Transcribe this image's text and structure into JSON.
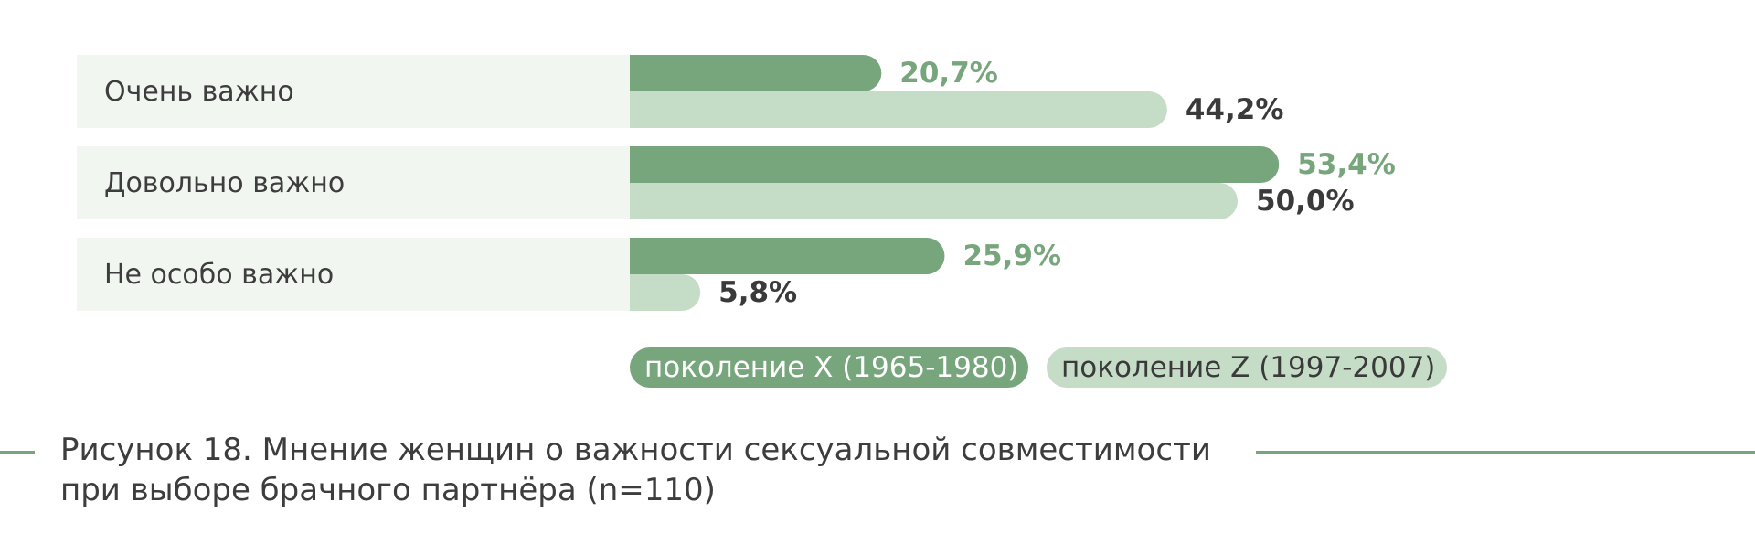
{
  "colors": {
    "series_x": "#78a67c",
    "series_z": "#c5dcc7",
    "row_bg": "#f1f6f1",
    "value_x_text": "#78a67c",
    "value_z_text": "#3a3a3a",
    "label_text": "#3d3d3d",
    "rule": "#78a67c"
  },
  "chart_data": {
    "type": "bar",
    "orientation": "horizontal",
    "categories": [
      "Очень важно",
      "Довольно важно",
      "Не особо важно"
    ],
    "series": [
      {
        "name": "поколение X (1965-1980)",
        "values": [
          20.7,
          53.4,
          25.9
        ],
        "labels": [
          "20,7%",
          "53,4%",
          "25,9%"
        ]
      },
      {
        "name": "поколение Z (1997-2007)",
        "values": [
          44.2,
          50.0,
          5.8
        ],
        "labels": [
          "44,2%",
          "50,0%",
          "5,8%"
        ]
      }
    ],
    "xlim": [
      0,
      100
    ],
    "unit": "%",
    "legend_position": "bottom",
    "grid": false
  },
  "caption": {
    "line1": "Рисунок 18. Мнение женщин о важности сексуальной совместимости",
    "line2": "при выборе брачного партнёра (n=110)"
  }
}
